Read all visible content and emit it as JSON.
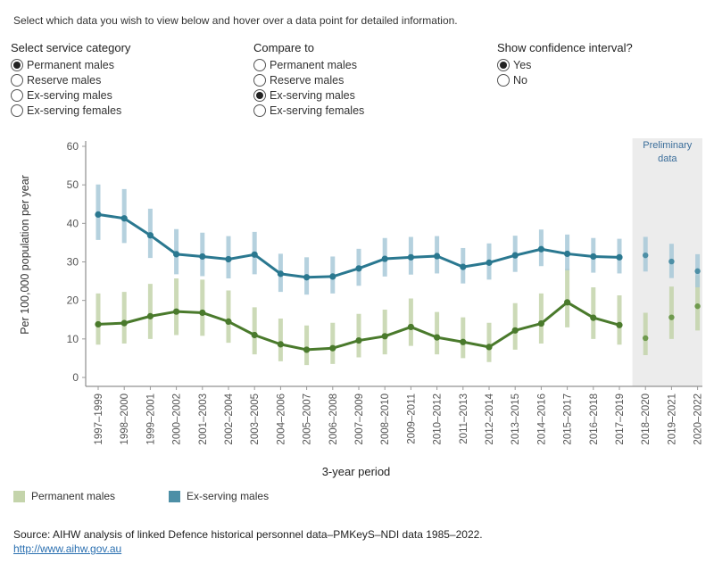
{
  "instruction": "Select which data you wish to view below and hover over a data point for detailed information.",
  "controls": {
    "service_category": {
      "title": "Select service category",
      "options": [
        "Permanent males",
        "Reserve males",
        "Ex-serving males",
        "Ex-serving females"
      ],
      "selected": 0
    },
    "compare_to": {
      "title": "Compare to",
      "options": [
        "Permanent males",
        "Reserve males",
        "Ex-serving males",
        "Ex-serving females"
      ],
      "selected": 2
    },
    "confidence": {
      "title": "Show confidence interval?",
      "options": [
        "Yes",
        "No"
      ],
      "selected": 0
    }
  },
  "colors": {
    "permanent_line": "#4a7a2c",
    "permanent_ci": "#c4d4ab",
    "permanent_prelim": "#6f9a4e",
    "exserving_line": "#2a7890",
    "exserving_ci": "#a9c9d9",
    "exserving_prelim": "#4d8fa6",
    "prelim_bg": "#ececec",
    "prelim_text": "#3a6d9a"
  },
  "chart_data": {
    "type": "line",
    "title": "",
    "xlabel": "3-year period",
    "ylabel": "Per 100,000 population per year",
    "ylim": [
      0,
      60
    ],
    "yticks": [
      0,
      10,
      20,
      30,
      40,
      50,
      60
    ],
    "categories": [
      "1997–1999",
      "1998–2000",
      "1999–2001",
      "2000–2002",
      "2001–2003",
      "2002–2004",
      "2003–2005",
      "2004–2006",
      "2005–2007",
      "2006–2008",
      "2007–2009",
      "2008–2010",
      "2009–2011",
      "2010–2012",
      "2011–2013",
      "2012–2014",
      "2013–2015",
      "2014–2016",
      "2015–2017",
      "2016–2018",
      "2017–2019",
      "2018–2020",
      "2019–2021",
      "2020–2022"
    ],
    "preliminary_start_index": 21,
    "preliminary_label": "Preliminary data",
    "series": [
      {
        "name": "Permanent males",
        "values": [
          13.8,
          14.1,
          15.9,
          17.1,
          16.8,
          14.5,
          11.0,
          8.6,
          7.2,
          7.6,
          9.6,
          10.7,
          13.1,
          10.4,
          9.2,
          7.9,
          12.2,
          14.0,
          19.5,
          15.5,
          13.6,
          10.2,
          15.6,
          18.5
        ],
        "ci_low": [
          8.5,
          8.8,
          10.0,
          11.0,
          10.8,
          9.0,
          6.0,
          4.2,
          3.2,
          3.5,
          5.2,
          6.0,
          8.2,
          6.0,
          5.0,
          4.0,
          7.2,
          8.8,
          13.0,
          10.0,
          8.5,
          5.8,
          10.0,
          12.2
        ],
        "ci_high": [
          21.8,
          22.2,
          24.3,
          25.7,
          25.4,
          22.6,
          18.2,
          15.3,
          13.5,
          14.2,
          16.5,
          17.6,
          20.5,
          17.0,
          15.6,
          14.2,
          19.3,
          21.8,
          28.2,
          23.4,
          21.3,
          16.8,
          23.6,
          26.5
        ]
      },
      {
        "name": "Ex-serving males",
        "values": [
          42.3,
          41.3,
          36.9,
          32.0,
          31.4,
          30.7,
          31.9,
          26.9,
          26.0,
          26.2,
          28.3,
          30.8,
          31.2,
          31.5,
          28.7,
          29.8,
          31.7,
          33.3,
          32.1,
          31.4,
          31.2,
          31.7,
          30.1,
          27.6
        ],
        "ci_low": [
          35.7,
          34.9,
          31.0,
          26.8,
          26.3,
          25.7,
          26.8,
          22.2,
          21.5,
          21.8,
          23.8,
          26.2,
          26.7,
          27.0,
          24.4,
          25.4,
          27.4,
          28.9,
          27.8,
          27.2,
          27.0,
          27.5,
          25.8,
          23.4
        ],
        "ci_high": [
          50.1,
          48.9,
          43.8,
          38.5,
          37.6,
          36.7,
          37.8,
          32.1,
          31.2,
          31.4,
          33.4,
          36.2,
          36.5,
          36.7,
          33.6,
          34.8,
          36.8,
          38.4,
          37.1,
          36.2,
          36.0,
          36.5,
          34.7,
          32.0
        ]
      }
    ],
    "legend": [
      "Permanent males",
      "Ex-serving males"
    ]
  },
  "source": "Source: AIHW analysis of linked Defence historical personnel data–PMKeyS–NDI data 1985–2022.",
  "source_link": "http://www.aihw.gov.au"
}
